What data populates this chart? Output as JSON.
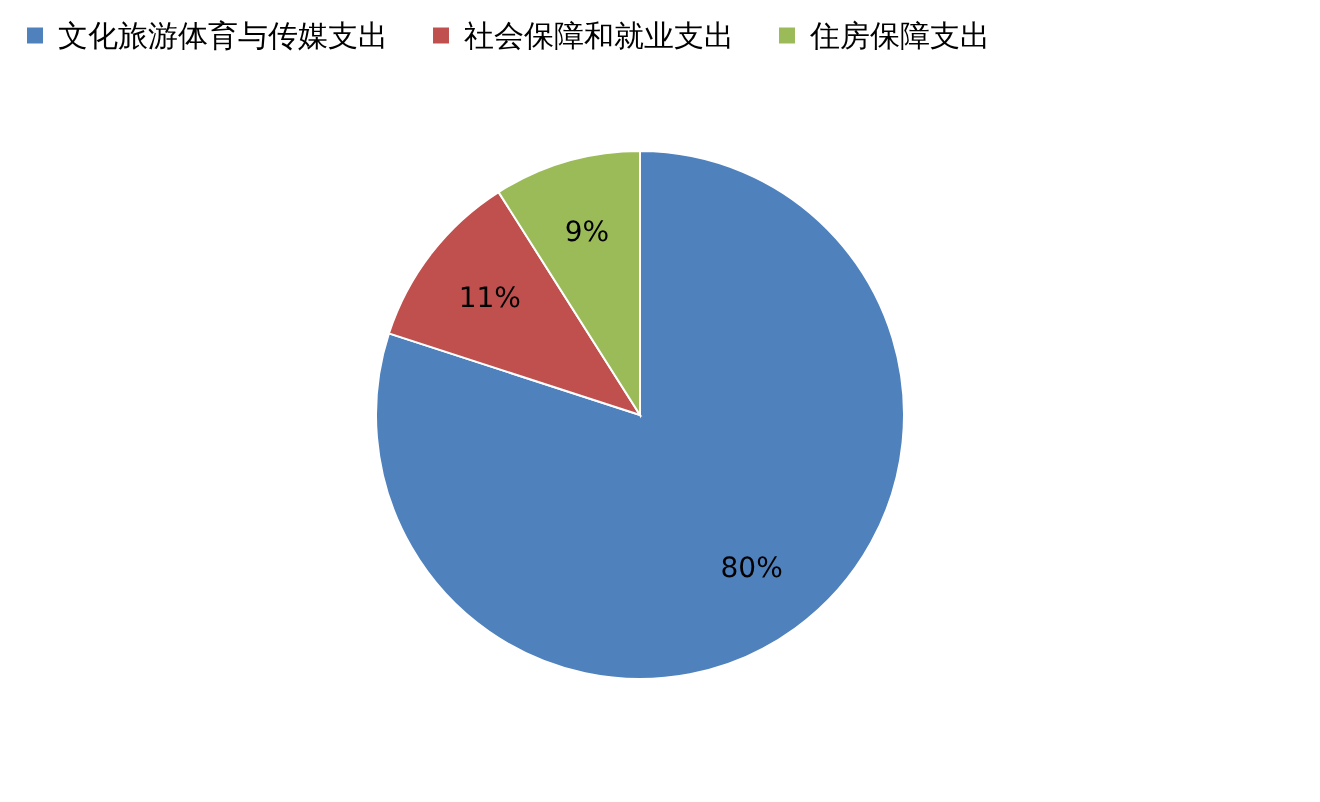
{
  "chart_data": {
    "type": "pie",
    "categories": [
      "文化旅游体育与传媒支出",
      "社会保障和就业支出",
      "住房保障支出"
    ],
    "values": [
      80,
      11,
      9
    ],
    "colors": [
      "#4f81bd",
      "#c0504d",
      "#9bbb59"
    ],
    "value_labels": [
      "80%",
      "11%",
      "9%"
    ],
    "legend": "top"
  }
}
